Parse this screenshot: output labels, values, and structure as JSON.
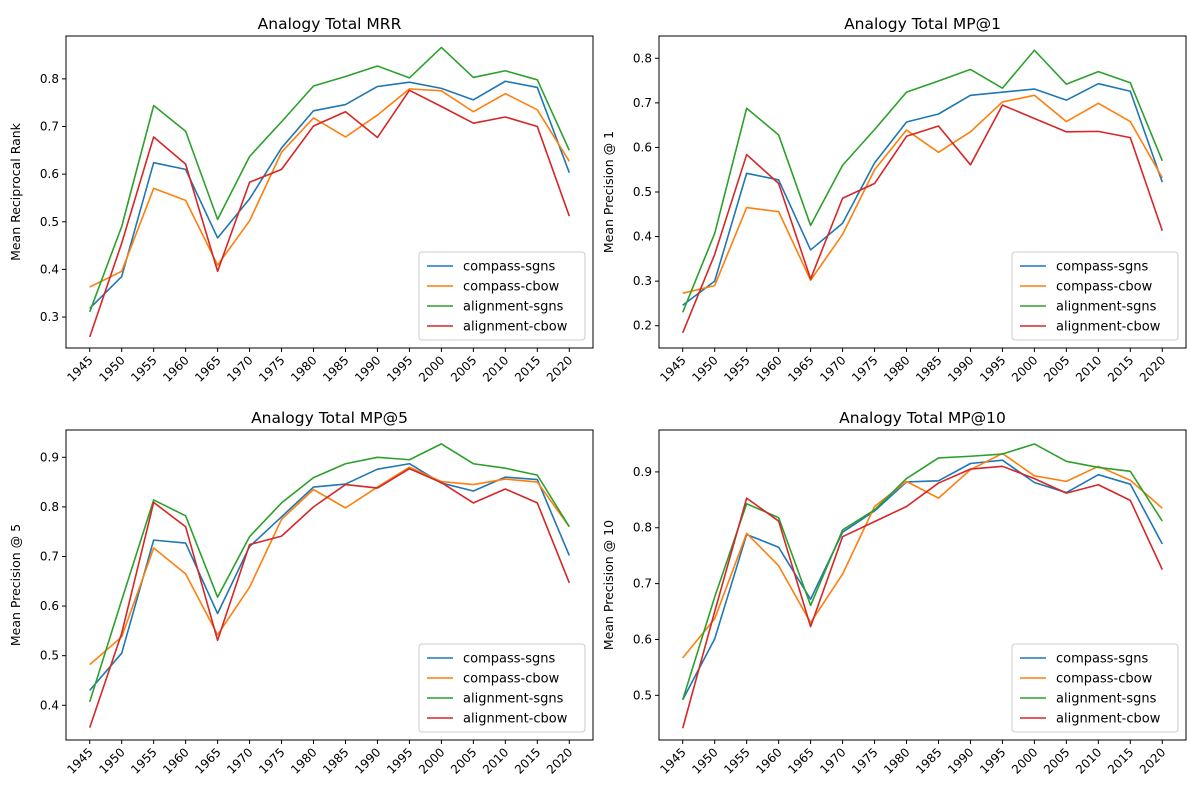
{
  "colors": {
    "compass-sgns": "#1f77b4",
    "compass-cbow": "#ff7f0e",
    "alignment-sgns": "#2ca02c",
    "alignment-cbow": "#d62728"
  },
  "chart_data": [
    {
      "type": "line",
      "title": "Analogy Total MRR",
      "xlabel": "",
      "ylabel": "Mean Reciprocal Rank",
      "x": [
        "1945",
        "1950",
        "1955",
        "1960",
        "1965",
        "1970",
        "1975",
        "1980",
        "1985",
        "1990",
        "1995",
        "2000",
        "2005",
        "2010",
        "2015",
        "2020"
      ],
      "ylim": [
        0.235,
        0.89
      ],
      "yticks": [
        0.3,
        0.4,
        0.5,
        0.6,
        0.7,
        0.8
      ],
      "ytick_labels": [
        "0.3",
        "0.4",
        "0.5",
        "0.6",
        "0.7",
        "0.8"
      ],
      "legend_position": "lower-right",
      "series": [
        {
          "name": "compass-sgns",
          "values": [
            0.318,
            0.385,
            0.624,
            0.61,
            0.466,
            0.548,
            0.655,
            0.733,
            0.746,
            0.784,
            0.793,
            0.78,
            0.756,
            0.795,
            0.782,
            0.603
          ]
        },
        {
          "name": "compass-cbow",
          "values": [
            0.363,
            0.396,
            0.57,
            0.545,
            0.409,
            0.502,
            0.646,
            0.718,
            0.678,
            0.724,
            0.779,
            0.775,
            0.731,
            0.769,
            0.735,
            0.627
          ]
        },
        {
          "name": "alignment-sgns",
          "values": [
            0.311,
            0.49,
            0.744,
            0.69,
            0.505,
            0.637,
            0.71,
            0.785,
            0.805,
            0.827,
            0.802,
            0.866,
            0.803,
            0.817,
            0.798,
            0.65
          ]
        },
        {
          "name": "alignment-cbow",
          "values": [
            0.258,
            0.455,
            0.678,
            0.621,
            0.396,
            0.583,
            0.61,
            0.701,
            0.731,
            0.677,
            0.776,
            0.742,
            0.707,
            0.72,
            0.7,
            0.512
          ]
        }
      ]
    },
    {
      "type": "line",
      "title": "Analogy Total MP@1",
      "xlabel": "",
      "ylabel": "Mean Precision @ 1",
      "x": [
        "1945",
        "1950",
        "1955",
        "1960",
        "1965",
        "1970",
        "1975",
        "1980",
        "1985",
        "1990",
        "1995",
        "2000",
        "2005",
        "2010",
        "2015",
        "2020"
      ],
      "ylim": [
        0.15,
        0.85
      ],
      "yticks": [
        0.2,
        0.3,
        0.4,
        0.5,
        0.6,
        0.7,
        0.8
      ],
      "ytick_labels": [
        "0.2",
        "0.3",
        "0.4",
        "0.5",
        "0.6",
        "0.7",
        "0.8"
      ],
      "legend_position": "lower-right",
      "series": [
        {
          "name": "compass-sgns",
          "values": [
            0.246,
            0.3,
            0.542,
            0.527,
            0.37,
            0.43,
            0.565,
            0.657,
            0.675,
            0.717,
            0.724,
            0.731,
            0.706,
            0.743,
            0.726,
            0.522
          ]
        },
        {
          "name": "compass-cbow",
          "values": [
            0.273,
            0.29,
            0.465,
            0.456,
            0.302,
            0.405,
            0.55,
            0.639,
            0.589,
            0.635,
            0.702,
            0.717,
            0.658,
            0.699,
            0.658,
            0.532
          ]
        },
        {
          "name": "alignment-sgns",
          "values": [
            0.23,
            0.407,
            0.688,
            0.628,
            0.425,
            0.56,
            0.64,
            0.724,
            0.749,
            0.775,
            0.733,
            0.818,
            0.742,
            0.77,
            0.745,
            0.57
          ]
        },
        {
          "name": "alignment-cbow",
          "values": [
            0.184,
            0.36,
            0.584,
            0.519,
            0.305,
            0.486,
            0.519,
            0.625,
            0.648,
            0.561,
            0.695,
            0.665,
            0.635,
            0.636,
            0.622,
            0.413
          ]
        }
      ]
    },
    {
      "type": "line",
      "title": "Analogy Total MP@5",
      "xlabel": "",
      "ylabel": "Mean Precision @ 5",
      "x": [
        "1945",
        "1950",
        "1955",
        "1960",
        "1965",
        "1970",
        "1975",
        "1980",
        "1985",
        "1990",
        "1995",
        "2000",
        "2005",
        "2010",
        "2015",
        "2020"
      ],
      "ylim": [
        0.33,
        0.955
      ],
      "yticks": [
        0.4,
        0.5,
        0.6,
        0.7,
        0.8,
        0.9
      ],
      "ytick_labels": [
        "0.4",
        "0.5",
        "0.6",
        "0.7",
        "0.8",
        "0.9"
      ],
      "legend_position": "lower-right",
      "series": [
        {
          "name": "compass-sgns",
          "values": [
            0.43,
            0.505,
            0.733,
            0.727,
            0.585,
            0.72,
            0.78,
            0.84,
            0.846,
            0.876,
            0.887,
            0.848,
            0.832,
            0.86,
            0.855,
            0.702
          ]
        },
        {
          "name": "compass-cbow",
          "values": [
            0.482,
            0.538,
            0.717,
            0.665,
            0.542,
            0.638,
            0.775,
            0.835,
            0.798,
            0.84,
            0.88,
            0.851,
            0.845,
            0.856,
            0.85,
            0.76
          ]
        },
        {
          "name": "alignment-sgns",
          "values": [
            0.407,
            0.612,
            0.814,
            0.782,
            0.618,
            0.74,
            0.808,
            0.859,
            0.887,
            0.9,
            0.895,
            0.927,
            0.887,
            0.878,
            0.864,
            0.76
          ]
        },
        {
          "name": "alignment-cbow",
          "values": [
            0.355,
            0.545,
            0.809,
            0.76,
            0.531,
            0.724,
            0.741,
            0.8,
            0.845,
            0.838,
            0.877,
            0.849,
            0.808,
            0.836,
            0.808,
            0.647
          ]
        }
      ]
    },
    {
      "type": "line",
      "title": "Analogy Total MP@10",
      "xlabel": "",
      "ylabel": "Mean Precision @ 10",
      "x": [
        "1945",
        "1950",
        "1955",
        "1960",
        "1965",
        "1970",
        "1975",
        "1980",
        "1985",
        "1990",
        "1995",
        "2000",
        "2005",
        "2010",
        "2015",
        "2020"
      ],
      "ylim": [
        0.42,
        0.975
      ],
      "yticks": [
        0.5,
        0.6,
        0.7,
        0.8,
        0.9
      ],
      "ytick_labels": [
        "0.5",
        "0.6",
        "0.7",
        "0.8",
        "0.9"
      ],
      "legend_position": "lower-right",
      "series": [
        {
          "name": "compass-sgns",
          "values": [
            0.492,
            0.601,
            0.788,
            0.765,
            0.672,
            0.792,
            0.83,
            0.882,
            0.884,
            0.915,
            0.921,
            0.881,
            0.863,
            0.895,
            0.878,
            0.771
          ]
        },
        {
          "name": "compass-cbow",
          "values": [
            0.567,
            0.637,
            0.79,
            0.732,
            0.63,
            0.717,
            0.838,
            0.883,
            0.853,
            0.904,
            0.933,
            0.893,
            0.883,
            0.91,
            0.885,
            0.835
          ]
        },
        {
          "name": "alignment-sgns",
          "values": [
            0.492,
            0.676,
            0.843,
            0.818,
            0.661,
            0.796,
            0.832,
            0.888,
            0.925,
            0.928,
            0.932,
            0.95,
            0.919,
            0.908,
            0.901,
            0.812
          ]
        },
        {
          "name": "alignment-cbow",
          "values": [
            0.441,
            0.65,
            0.853,
            0.812,
            0.623,
            0.784,
            0.811,
            0.838,
            0.88,
            0.905,
            0.91,
            0.888,
            0.862,
            0.877,
            0.849,
            0.725
          ]
        }
      ]
    }
  ]
}
